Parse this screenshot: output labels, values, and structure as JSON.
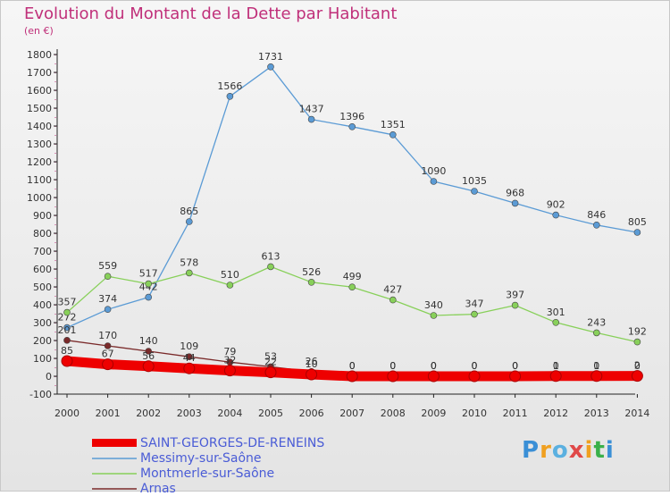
{
  "chart_data": {
    "type": "line",
    "title": "Evolution du Montant de la Dette par Habitant",
    "subtitle": "(en €)",
    "x": [
      "2000",
      "2001",
      "2002",
      "2003",
      "2004",
      "2005",
      "2006",
      "2007",
      "2008",
      "2009",
      "2010",
      "2011",
      "2012",
      "2013",
      "2014"
    ],
    "ylim": [
      -100,
      1800
    ],
    "yticks": [
      -100,
      0,
      100,
      200,
      300,
      400,
      500,
      600,
      700,
      800,
      900,
      1000,
      1100,
      1200,
      1300,
      1400,
      1500,
      1600,
      1700,
      1800
    ],
    "grid": false,
    "legend_position": "bottom-left",
    "series": [
      {
        "name": "SAINT-GEORGES-DE-RENEINS",
        "color": "#ee0000",
        "values": [
          85,
          67,
          56,
          44,
          32,
          22,
          10,
          0,
          0,
          0,
          0,
          0,
          1,
          1,
          2
        ]
      },
      {
        "name": "Messimy-sur-Saône",
        "color": "#5b9bd5",
        "values": [
          272,
          374,
          442,
          865,
          1566,
          1731,
          1437,
          1396,
          1351,
          1090,
          1035,
          968,
          902,
          846,
          805
        ]
      },
      {
        "name": "Montmerle-sur-Saône",
        "color": "#88d05a",
        "values": [
          357,
          559,
          517,
          578,
          510,
          613,
          526,
          499,
          427,
          340,
          347,
          397,
          301,
          243,
          192
        ]
      },
      {
        "name": "Arnas",
        "color": "#7a2a2a",
        "values": [
          201,
          170,
          140,
          109,
          79,
          53,
          26,
          0,
          0,
          0,
          0,
          0,
          0,
          0,
          0
        ]
      }
    ]
  },
  "logo": {
    "text": "Proxiti"
  }
}
